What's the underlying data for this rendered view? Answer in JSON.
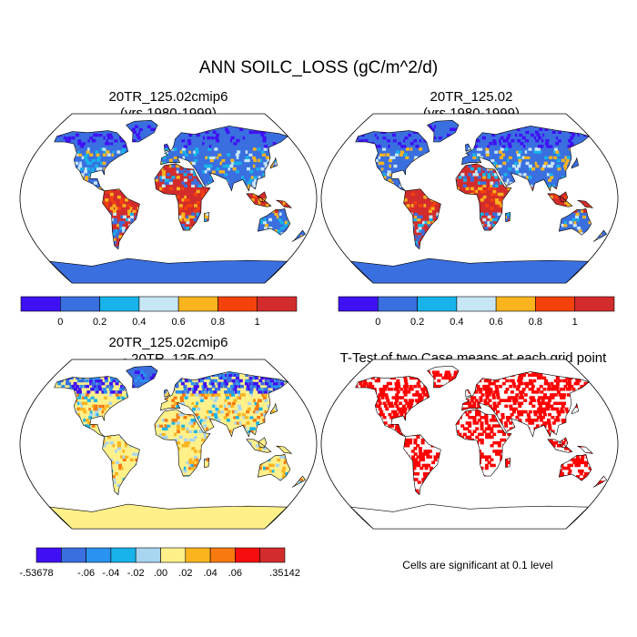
{
  "title": "ANN SOILC_LOSS (gC/m^2/d)",
  "colors": {
    "abs": [
      "#4010f5",
      "#3a6fe0",
      "#17b3ea",
      "#c7e6f5",
      "#fbb41e",
      "#f4420c",
      "#d32c2c"
    ],
    "diff": [
      "#4010f5",
      "#3a6fe0",
      "#2a92f0",
      "#17b3ea",
      "#a8d5f0",
      "#fff08a",
      "#fbb41e",
      "#f77a10",
      "#f40e0e",
      "#d32c2c"
    ],
    "sig": "#ff0000",
    "ocean": "#ffffff",
    "land_outline": "#000000"
  },
  "chart_data": [
    {
      "type": "heatmap",
      "title_lines": [
        "20TR_125.02cmip6",
        "(yrs 1980-1999)"
      ],
      "projection": "Robinson",
      "colorbar": {
        "levels": [
          "0",
          "0.2",
          "0.4",
          "0.6",
          "0.8",
          "1"
        ],
        "bins": 7
      },
      "field": {
        "ocean": "none",
        "antarctica": 0.1,
        "boreal": 0.1,
        "tropics": 1.0,
        "midlat": 0.3
      }
    },
    {
      "type": "heatmap",
      "title_lines": [
        "20TR_125.02",
        "(yrs 1980-1999)"
      ],
      "projection": "Robinson",
      "colorbar": {
        "levels": [
          "0",
          "0.2",
          "0.4",
          "0.6",
          "0.8",
          "1"
        ],
        "bins": 7
      },
      "field": {
        "ocean": "none",
        "antarctica": 0.1,
        "boreal": 0.1,
        "tropics": 1.0,
        "midlat": 0.3
      }
    },
    {
      "type": "heatmap",
      "title_lines": [
        "20TR_125.02cmip6",
        "- 20TR_125.02"
      ],
      "projection": "Robinson",
      "colorbar": {
        "levels": [
          "-.53678",
          "-.06",
          "-.04",
          "-.02",
          ".00",
          ".02",
          ".04",
          ".06",
          ".35142"
        ],
        "bins": 10
      },
      "field": {
        "antarctica": 0.01,
        "boreal": -0.05,
        "tropics": 0.02,
        "midlat": 0.01
      }
    },
    {
      "type": "heatmap",
      "title_lines": [
        "T-Test of two Case means at each grid point"
      ],
      "projection": "Robinson",
      "note": "Cells are significant at 0.1 level",
      "field": {
        "significant_fraction": 0.4
      }
    }
  ]
}
